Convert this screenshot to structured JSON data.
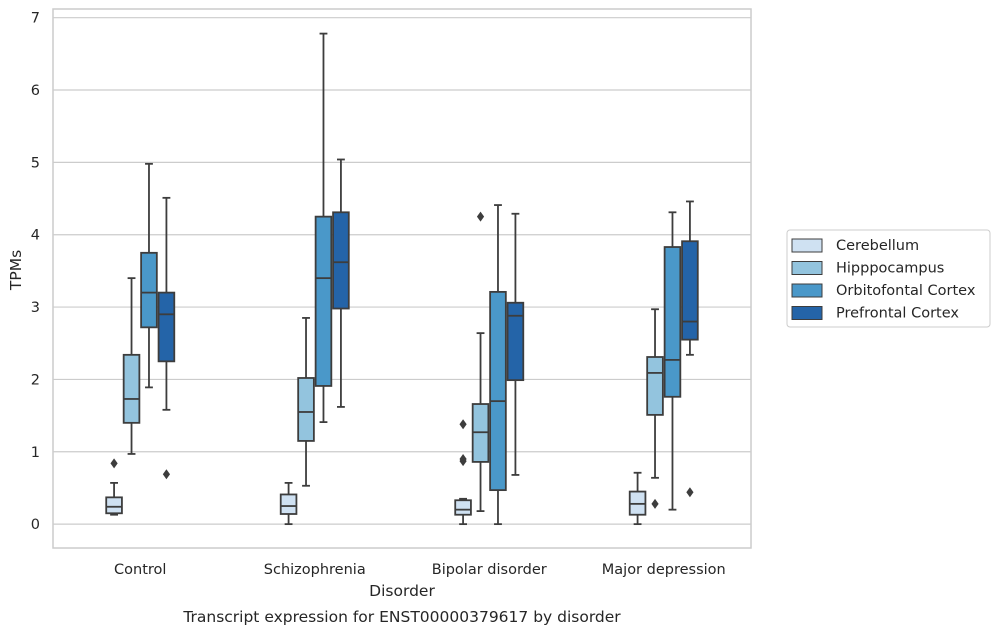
{
  "chart_data": {
    "type": "box",
    "title": "",
    "caption": "Transcript expression for ENST00000379617 by disorder",
    "xlabel": "Disorder",
    "ylabel": "TPMs",
    "ylim": [
      -0.33,
      7.12
    ],
    "yticks": [
      "0",
      "1",
      "2",
      "3",
      "4",
      "5",
      "6",
      "7"
    ],
    "grid": "horizontal",
    "legend_position": "right",
    "categories": [
      "Control",
      "Schizophrenia",
      "Bipolar disorder",
      "Major depression"
    ],
    "series": [
      {
        "name": "Cerebellum",
        "color": "#cfe1f2",
        "boxes": [
          {
            "whisker_low": 0.13,
            "q1": 0.15,
            "median": 0.24,
            "q3": 0.37,
            "whisker_high": 0.57,
            "outliers": [
              0.84
            ]
          },
          {
            "whisker_low": 0.0,
            "q1": 0.14,
            "median": 0.25,
            "q3": 0.41,
            "whisker_high": 0.57,
            "outliers": []
          },
          {
            "whisker_low": 0.0,
            "q1": 0.13,
            "median": 0.2,
            "q3": 0.33,
            "whisker_high": 0.35,
            "outliers": [
              0.87,
              0.9,
              1.38
            ]
          },
          {
            "whisker_low": 0.0,
            "q1": 0.13,
            "median": 0.28,
            "q3": 0.45,
            "whisker_high": 0.71,
            "outliers": []
          }
        ]
      },
      {
        "name": "Hipppocampus",
        "color": "#93c4de",
        "boxes": [
          {
            "whisker_low": 0.97,
            "q1": 1.4,
            "median": 1.73,
            "q3": 2.34,
            "whisker_high": 3.4,
            "outliers": []
          },
          {
            "whisker_low": 0.53,
            "q1": 1.15,
            "median": 1.55,
            "q3": 2.02,
            "whisker_high": 2.85,
            "outliers": []
          },
          {
            "whisker_low": 0.18,
            "q1": 0.86,
            "median": 1.27,
            "q3": 1.66,
            "whisker_high": 2.64,
            "outliers": [
              4.25
            ]
          },
          {
            "whisker_low": 0.64,
            "q1": 1.51,
            "median": 2.09,
            "q3": 2.31,
            "whisker_high": 2.97,
            "outliers": [
              0.28
            ]
          }
        ]
      },
      {
        "name": "Orbitofontal Cortex",
        "color": "#4a98c9",
        "boxes": [
          {
            "whisker_low": 1.89,
            "q1": 2.72,
            "median": 3.2,
            "q3": 3.75,
            "whisker_high": 4.98,
            "outliers": []
          },
          {
            "whisker_low": 1.41,
            "q1": 1.91,
            "median": 3.4,
            "q3": 4.25,
            "whisker_high": 6.78,
            "outliers": []
          },
          {
            "whisker_low": 0.0,
            "q1": 0.47,
            "median": 1.7,
            "q3": 3.21,
            "whisker_high": 4.41,
            "outliers": []
          },
          {
            "whisker_low": 0.2,
            "q1": 1.76,
            "median": 2.27,
            "q3": 3.83,
            "whisker_high": 4.31,
            "outliers": []
          }
        ]
      },
      {
        "name": "Prefrontal Cortex",
        "color": "#2464a8",
        "boxes": [
          {
            "whisker_low": 1.58,
            "q1": 2.25,
            "median": 2.9,
            "q3": 3.2,
            "whisker_high": 4.51,
            "outliers": [
              0.69
            ]
          },
          {
            "whisker_low": 1.62,
            "q1": 2.98,
            "median": 3.62,
            "q3": 4.31,
            "whisker_high": 5.04,
            "outliers": []
          },
          {
            "whisker_low": 0.68,
            "q1": 1.99,
            "median": 2.88,
            "q3": 3.06,
            "whisker_high": 4.29,
            "outliers": []
          },
          {
            "whisker_low": 2.34,
            "q1": 2.55,
            "median": 2.8,
            "q3": 3.91,
            "whisker_high": 4.46,
            "outliers": [
              0.44
            ]
          }
        ]
      }
    ]
  }
}
